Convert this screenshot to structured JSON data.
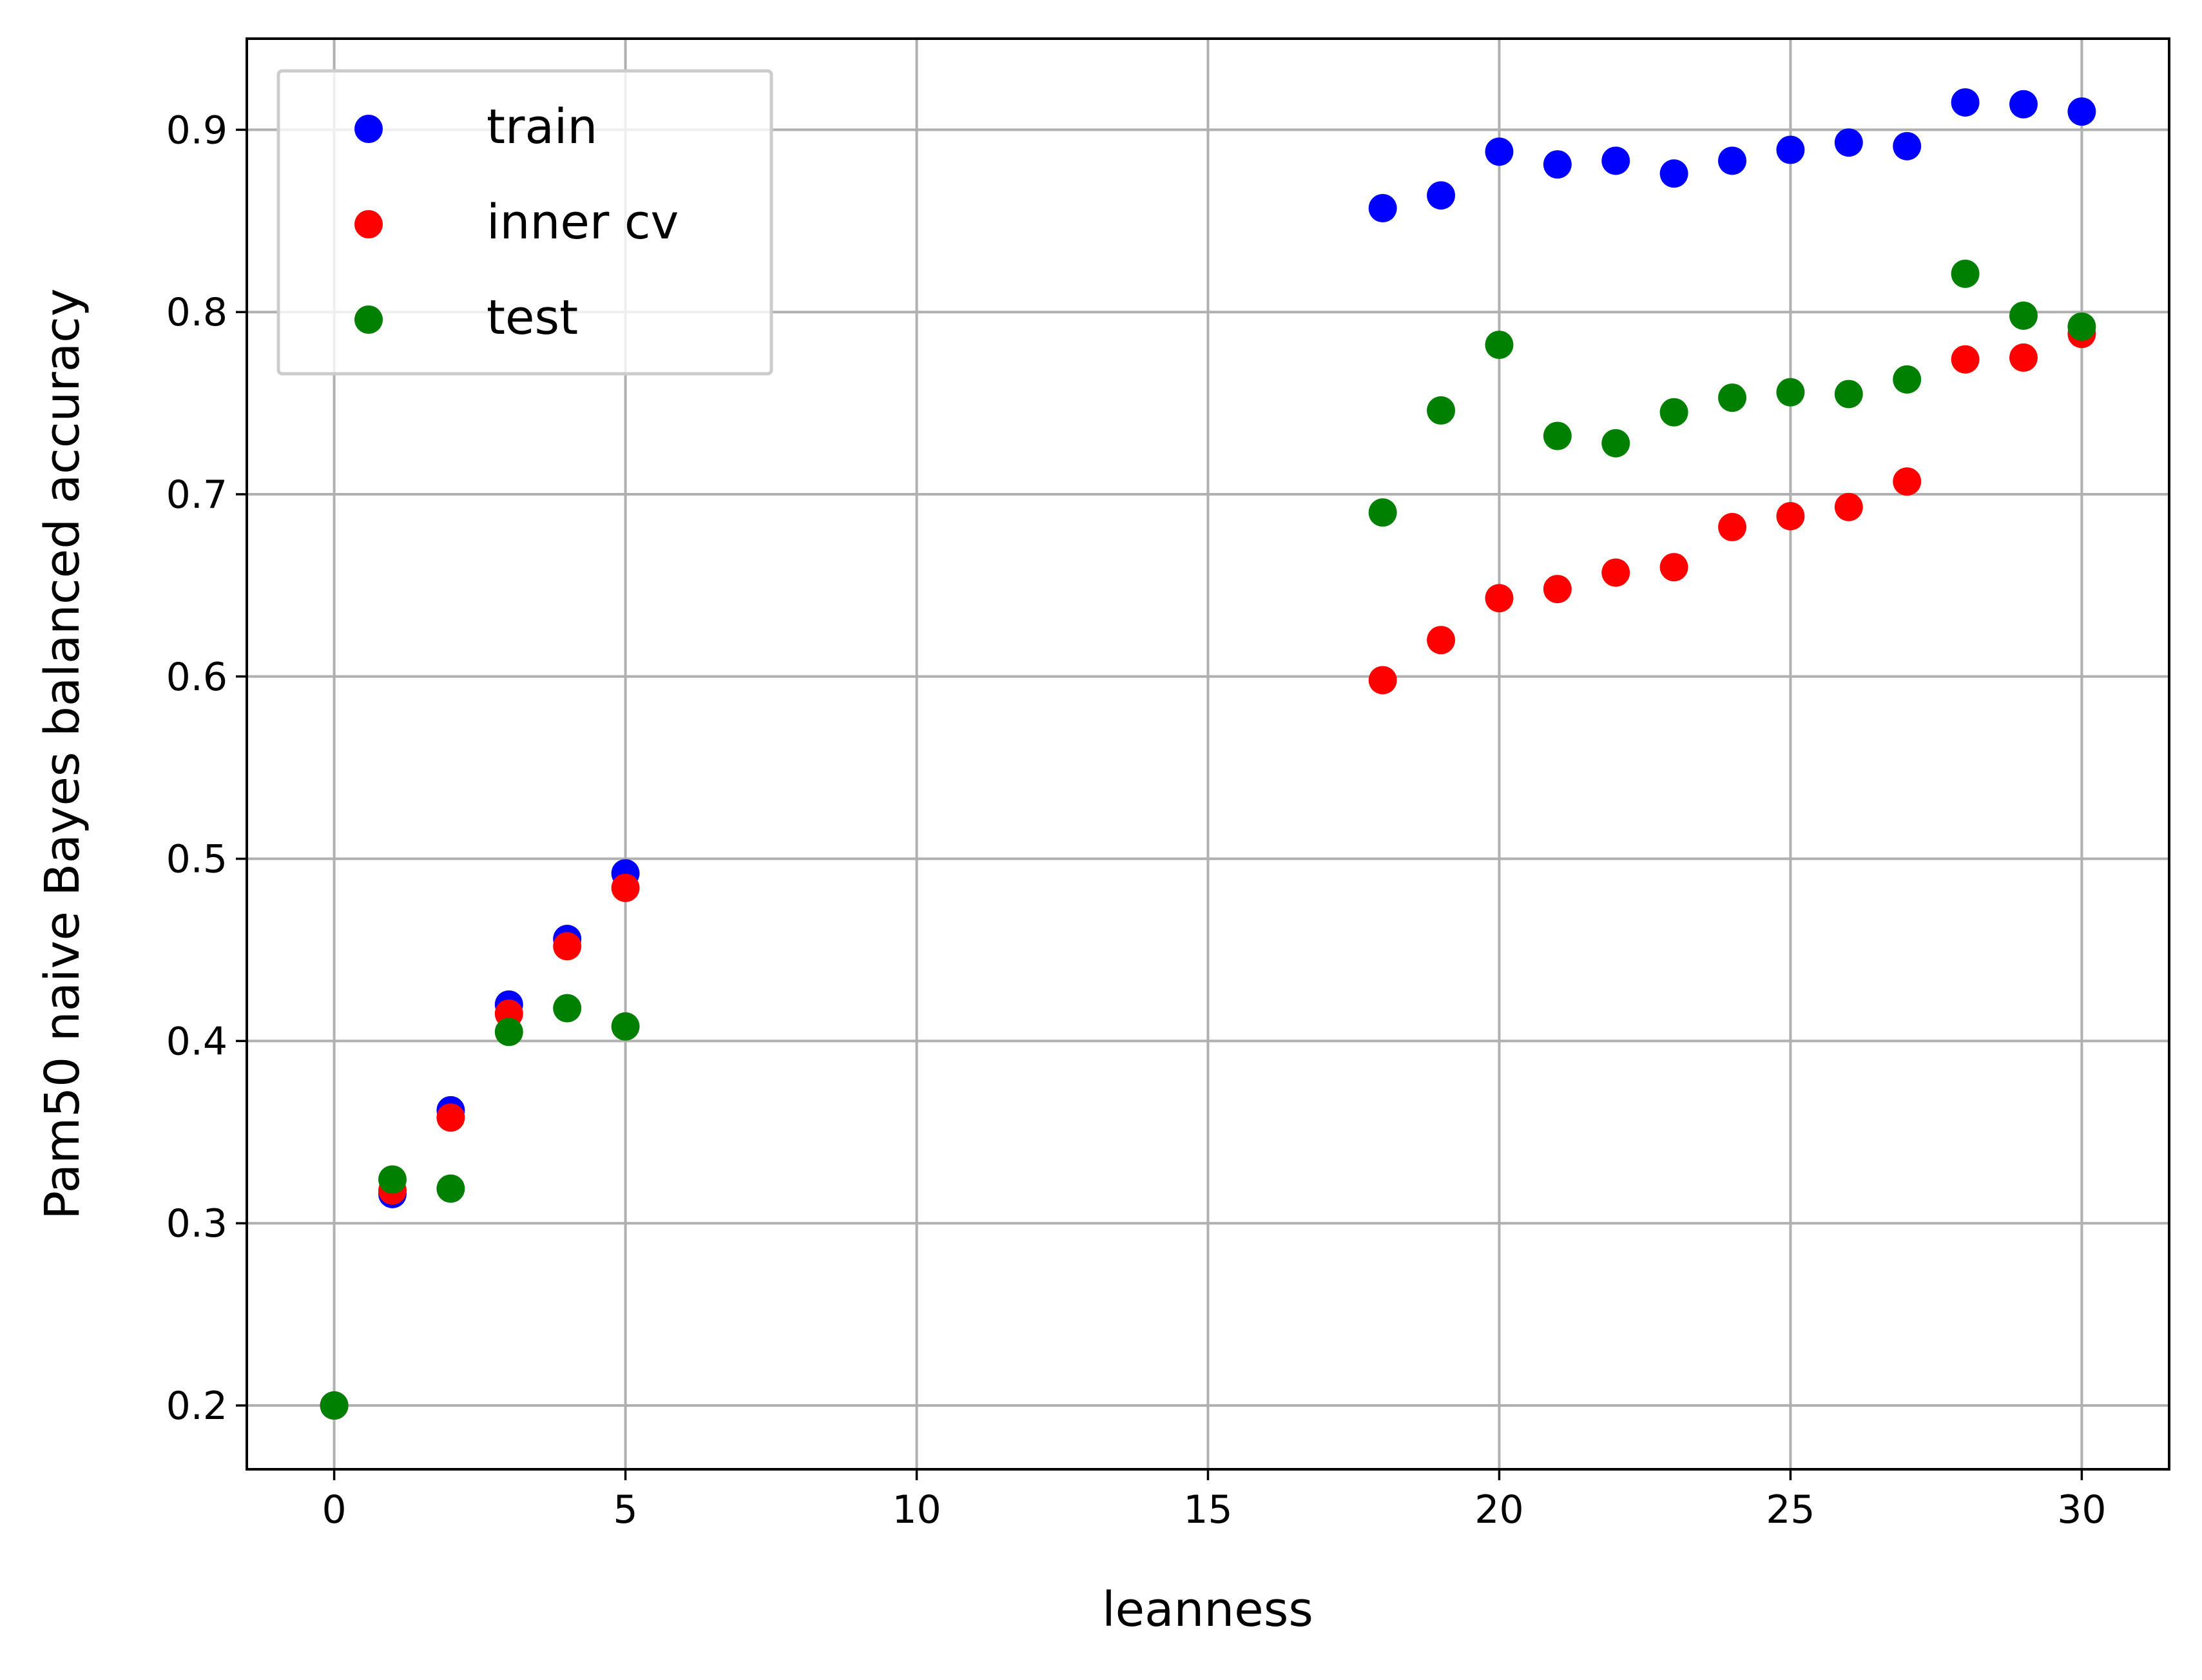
{
  "chart_data": {
    "type": "scatter",
    "xlabel": "leanness",
    "ylabel": "Pam50 naive Bayes balanced accuracy",
    "xlim": [
      -1.5,
      31.5
    ],
    "ylim": [
      0.165,
      0.95
    ],
    "xticks": [
      0,
      5,
      10,
      15,
      20,
      25,
      30
    ],
    "yticks": [
      0.2,
      0.3,
      0.4,
      0.5,
      0.6,
      0.7,
      0.8,
      0.9
    ],
    "xtick_labels": [
      "0",
      "5",
      "10",
      "15",
      "20",
      "25",
      "30"
    ],
    "ytick_labels": [
      "0.2",
      "0.3",
      "0.4",
      "0.5",
      "0.6",
      "0.7",
      "0.8",
      "0.9"
    ],
    "grid": true,
    "legend_position": "top-left",
    "series": [
      {
        "name": "train",
        "color": "#0000ff",
        "x": [
          0,
          1,
          2,
          3,
          4,
          5,
          18,
          19,
          20,
          21,
          22,
          23,
          24,
          25,
          26,
          27,
          28,
          29,
          30
        ],
        "y": [
          0.2,
          0.316,
          0.362,
          0.42,
          0.456,
          0.492,
          0.857,
          0.864,
          0.888,
          0.881,
          0.883,
          0.876,
          0.883,
          0.889,
          0.893,
          0.891,
          0.915,
          0.914,
          0.91
        ]
      },
      {
        "name": "inner cv",
        "color": "#ff0000",
        "x": [
          0,
          1,
          2,
          3,
          4,
          5,
          18,
          19,
          20,
          21,
          22,
          23,
          24,
          25,
          26,
          27,
          28,
          29,
          30
        ],
        "y": [
          0.2,
          0.318,
          0.358,
          0.415,
          0.452,
          0.484,
          0.598,
          0.62,
          0.643,
          0.648,
          0.657,
          0.66,
          0.682,
          0.688,
          0.693,
          0.707,
          0.774,
          0.775,
          0.788
        ]
      },
      {
        "name": "test",
        "color": "#008000",
        "x": [
          0,
          1,
          2,
          3,
          4,
          5,
          18,
          19,
          20,
          21,
          22,
          23,
          24,
          25,
          26,
          27,
          28,
          29,
          30
        ],
        "y": [
          0.2,
          0.324,
          0.319,
          0.405,
          0.418,
          0.408,
          0.69,
          0.746,
          0.782,
          0.732,
          0.728,
          0.745,
          0.753,
          0.756,
          0.755,
          0.763,
          0.821,
          0.798,
          0.792
        ]
      }
    ]
  }
}
